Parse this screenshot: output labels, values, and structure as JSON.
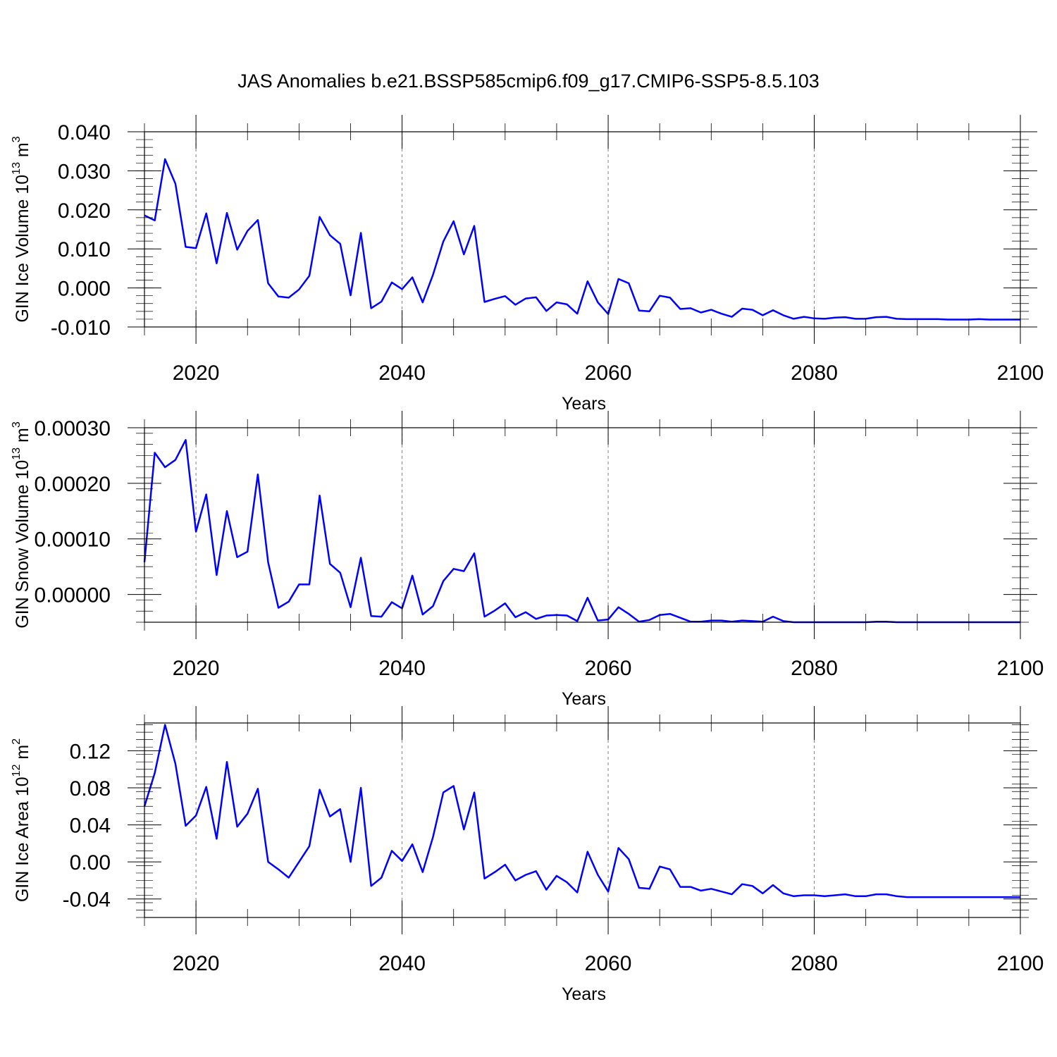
{
  "title": "JAS Anomalies b.e21.BSSP585cmip6.f09_g17.CMIP6-SSP5-8.5.103",
  "colors": {
    "line": "#0000ff",
    "axis": "#000000",
    "grid": "#808080",
    "background": "#ffffff"
  },
  "chart_data": [
    {
      "type": "line",
      "ylabel_main": "GIN Ice Volume 10",
      "ylabel_exp": "13",
      "ylabel_unit": " m",
      "ylabel_unit_exp": "3",
      "xlabel": "Years",
      "xlim": [
        2015,
        2100
      ],
      "ylim": [
        -0.01,
        0.04
      ],
      "x_ticks": [
        "2020",
        "2040",
        "2060",
        "2080",
        "2100"
      ],
      "y_ticks": [
        "0.040",
        "0.030",
        "0.020",
        "0.010",
        "0.000",
        "-0.010"
      ],
      "grid_x": true,
      "series": [
        {
          "name": "GIN Ice Volume",
          "x_start": 2015,
          "values": [
            0.0186,
            0.0173,
            0.033,
            0.0267,
            0.0105,
            0.0102,
            0.0191,
            0.0063,
            0.0192,
            0.0098,
            0.0146,
            0.0174,
            0.0012,
            -0.0022,
            -0.0025,
            -0.0004,
            0.0031,
            0.0182,
            0.0135,
            0.0113,
            -0.0019,
            0.0141,
            -0.0052,
            -0.0035,
            0.0014,
            -0.0003,
            0.0027,
            -0.0037,
            0.0034,
            0.0119,
            0.0171,
            0.0086,
            0.0159,
            -0.0036,
            -0.0028,
            -0.0021,
            -0.0043,
            -0.0027,
            -0.0024,
            -0.0059,
            -0.0037,
            -0.0042,
            -0.0066,
            0.0017,
            -0.0037,
            -0.0067,
            0.0023,
            0.0012,
            -0.0058,
            -0.006,
            -0.002,
            -0.0025,
            -0.0054,
            -0.0052,
            -0.0063,
            -0.0056,
            -0.0066,
            -0.0074,
            -0.0053,
            -0.0056,
            -0.007,
            -0.0057,
            -0.007,
            -0.0079,
            -0.0074,
            -0.0078,
            -0.0079,
            -0.0076,
            -0.0075,
            -0.0079,
            -0.0079,
            -0.0075,
            -0.0074,
            -0.0079,
            -0.008,
            -0.008,
            -0.008,
            -0.008,
            -0.0081,
            -0.0081,
            -0.0081,
            -0.008,
            -0.0081,
            -0.0081,
            -0.0081,
            -0.0081
          ]
        }
      ]
    },
    {
      "type": "line",
      "ylabel_main": "GIN Snow Volume 10",
      "ylabel_exp": "13",
      "ylabel_unit": " m",
      "ylabel_unit_exp": "3",
      "xlabel": "Years",
      "xlim": [
        2015,
        2100
      ],
      "ylim": [
        -5e-05,
        0.0003
      ],
      "x_ticks": [
        "2020",
        "2040",
        "2060",
        "2080",
        "2100"
      ],
      "y_ticks": [
        "0.00030",
        "0.00020",
        "0.00010",
        "0.00000"
      ],
      "grid_x": true,
      "series": [
        {
          "name": "GIN Snow Volume",
          "x_start": 2015,
          "values": [
            5.8e-05,
            0.000255,
            0.000229,
            0.000242,
            0.000278,
            0.000113,
            0.00018,
            3.5e-05,
            0.00015,
            6.7e-05,
            7.7e-05,
            0.000216,
            5.8e-05,
            -2.4e-05,
            -1.3e-05,
            1.8e-05,
            1.8e-05,
            0.000178,
            5.5e-05,
            3.9e-05,
            -2.3e-05,
            6.6e-05,
            -3.9e-05,
            -4e-05,
            -1.4e-05,
            -2.5e-05,
            3.4e-05,
            -3.6e-05,
            -2.1e-05,
            2.4e-05,
            4.6e-05,
            4.2e-05,
            7.4e-05,
            -4e-05,
            -2.9e-05,
            -1.6e-05,
            -4.1e-05,
            -3.2e-05,
            -4.4e-05,
            -3.8e-05,
            -3.7e-05,
            -3.8e-05,
            -4.8e-05,
            -6e-06,
            -4.7e-05,
            -4.5e-05,
            -2.3e-05,
            -3.5e-05,
            -4.9e-05,
            -4.6e-05,
            -3.7e-05,
            -3.5e-05,
            -4.2e-05,
            -4.9e-05,
            -4.9e-05,
            -4.7e-05,
            -4.7e-05,
            -4.9e-05,
            -4.7e-05,
            -4.8e-05,
            -4.9e-05,
            -4e-05,
            -4.8e-05,
            -5e-05,
            -5e-05,
            -5e-05,
            -5e-05,
            -5e-05,
            -5e-05,
            -5e-05,
            -5e-05,
            -4.9e-05,
            -4.9e-05,
            -5e-05,
            -5e-05,
            -5e-05,
            -5e-05,
            -5e-05,
            -5e-05,
            -5e-05,
            -5e-05,
            -5e-05,
            -5e-05,
            -5e-05,
            -5e-05,
            -5e-05
          ]
        }
      ]
    },
    {
      "type": "line",
      "ylabel_main": "GIN Ice Area 10",
      "ylabel_exp": "12",
      "ylabel_unit": " m",
      "ylabel_unit_exp": "2",
      "xlabel": "Years",
      "xlim": [
        2015,
        2100
      ],
      "ylim": [
        -0.06,
        0.15
      ],
      "x_ticks": [
        "2020",
        "2040",
        "2060",
        "2080",
        "2100"
      ],
      "y_ticks": [
        "0.12",
        "0.08",
        "0.04",
        "0.00",
        "-0.04"
      ],
      "grid_x": true,
      "series": [
        {
          "name": "GIN Ice Area",
          "x_start": 2015,
          "values": [
            0.06,
            0.096,
            0.148,
            0.106,
            0.039,
            0.05,
            0.081,
            0.025,
            0.108,
            0.038,
            0.052,
            0.079,
            0.0,
            -0.008,
            -0.017,
            0.0,
            0.017,
            0.078,
            0.049,
            0.057,
            0.0,
            0.08,
            -0.026,
            -0.017,
            0.012,
            0.001,
            0.019,
            -0.011,
            0.027,
            0.075,
            0.082,
            0.035,
            0.075,
            -0.018,
            -0.011,
            -0.003,
            -0.02,
            -0.014,
            -0.01,
            -0.03,
            -0.015,
            -0.022,
            -0.033,
            0.011,
            -0.014,
            -0.032,
            0.015,
            0.003,
            -0.028,
            -0.029,
            -0.005,
            -0.008,
            -0.027,
            -0.027,
            -0.031,
            -0.029,
            -0.032,
            -0.035,
            -0.024,
            -0.026,
            -0.034,
            -0.025,
            -0.034,
            -0.037,
            -0.036,
            -0.036,
            -0.037,
            -0.036,
            -0.035,
            -0.037,
            -0.037,
            -0.035,
            -0.035,
            -0.037,
            -0.038,
            -0.038,
            -0.038,
            -0.038,
            -0.038,
            -0.038,
            -0.038,
            -0.038,
            -0.038,
            -0.038,
            -0.038,
            -0.038
          ]
        }
      ]
    }
  ]
}
